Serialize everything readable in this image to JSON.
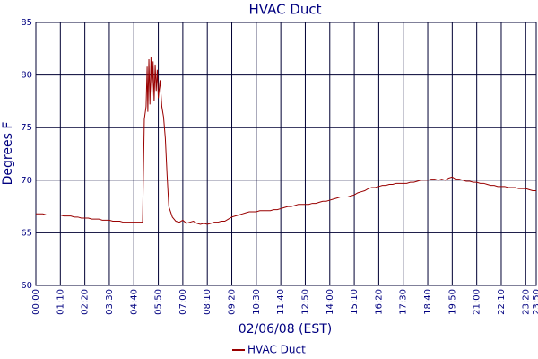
{
  "chart_data": {
    "type": "line",
    "title": "HVAC Duct",
    "x_label": "02/06/08 (EST)",
    "y_label": "Degrees F",
    "xlim": [
      0,
      1430
    ],
    "ylim": [
      60,
      85
    ],
    "yticks": [
      60,
      65,
      70,
      75,
      80,
      85
    ],
    "xticks": [
      {
        "value": 0,
        "label": "00:00"
      },
      {
        "value": 70,
        "label": "01:10"
      },
      {
        "value": 140,
        "label": "02:20"
      },
      {
        "value": 210,
        "label": "03:30"
      },
      {
        "value": 280,
        "label": "04:40"
      },
      {
        "value": 350,
        "label": "05:50"
      },
      {
        "value": 420,
        "label": "07:00"
      },
      {
        "value": 490,
        "label": "08:10"
      },
      {
        "value": 560,
        "label": "09:20"
      },
      {
        "value": 630,
        "label": "10:30"
      },
      {
        "value": 700,
        "label": "11:40"
      },
      {
        "value": 770,
        "label": "12:50"
      },
      {
        "value": 840,
        "label": "14:00"
      },
      {
        "value": 910,
        "label": "15:10"
      },
      {
        "value": 980,
        "label": "16:20"
      },
      {
        "value": 1050,
        "label": "17:30"
      },
      {
        "value": 1120,
        "label": "18:40"
      },
      {
        "value": 1190,
        "label": "19:50"
      },
      {
        "value": 1260,
        "label": "21:00"
      },
      {
        "value": 1330,
        "label": "22:10"
      },
      {
        "value": 1400,
        "label": "23:20"
      },
      {
        "value": 1430,
        "label": "23:50"
      }
    ],
    "grid": true,
    "legend": "bottom",
    "x": [
      0,
      10,
      20,
      30,
      40,
      50,
      60,
      70,
      80,
      90,
      100,
      110,
      120,
      130,
      140,
      150,
      160,
      170,
      180,
      190,
      200,
      210,
      220,
      230,
      240,
      250,
      260,
      270,
      280,
      290,
      300,
      305,
      310,
      315,
      318,
      320,
      323,
      326,
      329,
      332,
      335,
      338,
      341,
      344,
      347,
      350,
      355,
      360,
      365,
      370,
      375,
      380,
      390,
      400,
      410,
      420,
      430,
      440,
      450,
      460,
      470,
      480,
      490,
      500,
      510,
      520,
      530,
      540,
      550,
      560,
      570,
      580,
      590,
      600,
      610,
      620,
      630,
      640,
      650,
      660,
      670,
      680,
      690,
      700,
      710,
      720,
      730,
      740,
      750,
      760,
      770,
      780,
      790,
      800,
      810,
      820,
      830,
      840,
      850,
      860,
      870,
      880,
      890,
      900,
      910,
      920,
      930,
      940,
      950,
      960,
      970,
      980,
      990,
      1000,
      1010,
      1020,
      1030,
      1040,
      1050,
      1060,
      1070,
      1080,
      1090,
      1100,
      1110,
      1120,
      1130,
      1140,
      1150,
      1160,
      1170,
      1180,
      1190,
      1200,
      1210,
      1220,
      1230,
      1240,
      1250,
      1260,
      1270,
      1280,
      1290,
      1300,
      1310,
      1320,
      1330,
      1340,
      1350,
      1360,
      1370,
      1380,
      1390,
      1400,
      1410,
      1420,
      1430
    ],
    "series": [
      {
        "name": "HVAC Duct",
        "color": "#990000",
        "values": [
          66.8,
          66.8,
          66.8,
          66.7,
          66.7,
          66.7,
          66.7,
          66.7,
          66.6,
          66.6,
          66.6,
          66.5,
          66.5,
          66.4,
          66.4,
          66.4,
          66.3,
          66.3,
          66.3,
          66.2,
          66.2,
          66.2,
          66.1,
          66.1,
          66.1,
          66.0,
          66.0,
          66.0,
          66.0,
          66.0,
          66.0,
          66.0,
          75.8,
          77.0,
          80.8,
          76.5,
          81.5,
          77.2,
          81.7,
          78.0,
          81.3,
          77.5,
          81.0,
          78.5,
          80.5,
          77.8,
          79.5,
          77.0,
          76.0,
          74.0,
          70.5,
          67.5,
          66.5,
          66.1,
          66.0,
          66.2,
          65.9,
          66.0,
          66.1,
          65.9,
          65.8,
          65.9,
          65.8,
          65.9,
          66.0,
          66.0,
          66.1,
          66.1,
          66.3,
          66.5,
          66.6,
          66.7,
          66.8,
          66.9,
          67.0,
          67.0,
          67.0,
          67.1,
          67.1,
          67.1,
          67.1,
          67.2,
          67.2,
          67.3,
          67.4,
          67.5,
          67.5,
          67.6,
          67.7,
          67.7,
          67.7,
          67.7,
          67.8,
          67.8,
          67.9,
          68.0,
          68.0,
          68.1,
          68.2,
          68.3,
          68.4,
          68.4,
          68.4,
          68.5,
          68.6,
          68.8,
          68.9,
          69.0,
          69.2,
          69.3,
          69.3,
          69.4,
          69.5,
          69.5,
          69.6,
          69.6,
          69.7,
          69.7,
          69.7,
          69.7,
          69.8,
          69.8,
          69.9,
          70.0,
          70.0,
          70.0,
          70.1,
          70.1,
          70.0,
          70.1,
          70.0,
          70.2,
          70.3,
          70.1,
          70.1,
          70.0,
          69.9,
          69.9,
          69.8,
          69.8,
          69.7,
          69.7,
          69.6,
          69.5,
          69.5,
          69.4,
          69.4,
          69.4,
          69.3,
          69.3,
          69.3,
          69.2,
          69.2,
          69.2,
          69.1,
          69.0,
          69.0
        ]
      }
    ]
  }
}
